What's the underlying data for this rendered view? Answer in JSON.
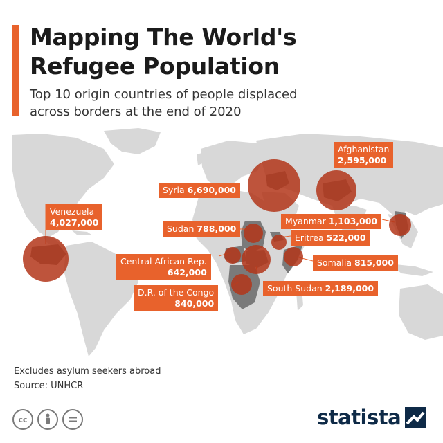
{
  "header": {
    "title_line1": "Mapping The World's",
    "title_line2": "Refugee Population",
    "subtitle_line1": "Top 10 origin countries of people displaced",
    "subtitle_line2": "across borders at the end of 2020"
  },
  "countries": [
    {
      "name": "Syria",
      "value": "6,690,000"
    },
    {
      "name": "Venezuela",
      "value": "4,027,000"
    },
    {
      "name": "Afghanistan",
      "value": "2,595,000"
    },
    {
      "name": "South Sudan",
      "value": "2,189,000"
    },
    {
      "name": "Myanmar",
      "value": "1,103,000"
    },
    {
      "name": "D.R. of the Congo",
      "value": "840,000"
    },
    {
      "name": "Somalia",
      "value": "815,000"
    },
    {
      "name": "Sudan",
      "value": "788,000"
    },
    {
      "name": "Central African Rep.",
      "value": "642,000"
    },
    {
      "name": "Eritrea",
      "value": "522,000"
    }
  ],
  "footer": {
    "note": "Excludes asylum seekers abroad",
    "source": "Source: UNHCR",
    "brand": "statista",
    "cc_icons": [
      "cc-icon",
      "person-icon",
      "equals-icon"
    ]
  },
  "colors": {
    "accent": "#e8622c",
    "bubble": "#b3361a",
    "land": "#d8d8d8",
    "highlight_land": "#7a7a7a",
    "brand": "#0e2a47"
  }
}
